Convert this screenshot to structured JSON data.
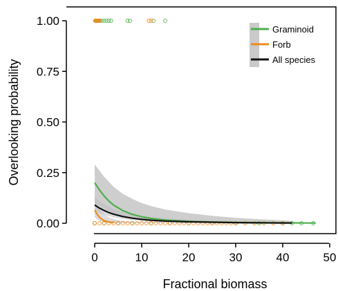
{
  "chart_data": {
    "type": "line",
    "title": "",
    "xlabel": "Fractional biomass",
    "ylabel": "Overlooking probability",
    "xlim": [
      -2,
      51
    ],
    "ylim": [
      -0.04,
      1.04
    ],
    "xticks": [
      0,
      10,
      20,
      30,
      40,
      50
    ],
    "xtick_labels": [
      "0",
      "10",
      "20",
      "30",
      "40",
      "50"
    ],
    "yticks": [
      0,
      0.25,
      0.5,
      0.75,
      1.0
    ],
    "ytick_labels": [
      "0.00",
      "0.25",
      "0.50",
      "0.75",
      "1.00"
    ],
    "legend_position": "top-right",
    "grid": false,
    "series": [
      {
        "name": "Graminoid",
        "color": "#4cae4c",
        "curve": {
          "x": [
            0,
            1,
            2,
            3,
            4,
            6,
            8,
            10,
            12,
            15,
            20,
            25,
            30,
            35,
            40,
            47
          ],
          "y": [
            0.2,
            0.165,
            0.135,
            0.11,
            0.09,
            0.062,
            0.044,
            0.032,
            0.024,
            0.016,
            0.009,
            0.006,
            0.004,
            0.003,
            0.002,
            0.001
          ]
        },
        "band": {
          "x": [
            0,
            1,
            2,
            3,
            4,
            6,
            8,
            10,
            12,
            15,
            20,
            25,
            30,
            35,
            40,
            42
          ],
          "lower": [
            0.1,
            0.085,
            0.072,
            0.06,
            0.05,
            0.035,
            0.025,
            0.017,
            0.012,
            0.007,
            0.003,
            0.001,
            0.0,
            0.0,
            0.0,
            0.0
          ],
          "upper": [
            0.29,
            0.26,
            0.23,
            0.205,
            0.18,
            0.145,
            0.12,
            0.1,
            0.085,
            0.068,
            0.05,
            0.037,
            0.027,
            0.02,
            0.014,
            0.012
          ]
        },
        "points_at_1": [
          0.2,
          0.4,
          0.6,
          0.8,
          1.0,
          1.5,
          2.0,
          2.5,
          3.0,
          3.5,
          7.0,
          7.5,
          12.5,
          15.0
        ],
        "points_at_0": [
          0,
          2,
          5,
          8,
          12,
          16,
          20,
          25,
          30,
          35,
          40,
          42,
          44,
          46.5
        ]
      },
      {
        "name": "Forb",
        "color": "#f08a1c",
        "curve": {
          "x": [
            0,
            0.5,
            1,
            1.5,
            2,
            3,
            4
          ],
          "y": [
            0.065,
            0.045,
            0.03,
            0.02,
            0.013,
            0.006,
            0.003
          ]
        },
        "band": {
          "x": [
            0,
            1,
            2,
            3,
            4,
            6,
            8,
            10,
            15,
            20
          ],
          "lower": [
            0.03,
            0.012,
            0.004,
            0.001,
            0.0,
            0.0,
            0.0,
            0.0,
            0.0,
            0.0
          ],
          "upper": [
            0.12,
            0.07,
            0.045,
            0.03,
            0.02,
            0.012,
            0.008,
            0.006,
            0.004,
            0.003
          ]
        },
        "points_at_1": [
          0.1,
          0.2,
          0.3,
          0.5,
          0.7,
          0.9,
          1.1,
          11.5,
          12.0
        ],
        "points_at_0": [
          0,
          1,
          2,
          3,
          4,
          5,
          6,
          7,
          8,
          9,
          10,
          11,
          12,
          13,
          14,
          15,
          16,
          17,
          18,
          19,
          20,
          21,
          22,
          23,
          24,
          25,
          26,
          27,
          28,
          29,
          30,
          32,
          34,
          36,
          38,
          40
        ]
      },
      {
        "name": "All species",
        "color": "#111111",
        "curve": {
          "x": [
            0,
            1,
            2,
            3,
            4,
            6,
            8,
            10,
            12,
            15,
            20,
            25,
            30,
            35,
            40,
            42
          ],
          "y": [
            0.09,
            0.075,
            0.063,
            0.053,
            0.045,
            0.033,
            0.025,
            0.019,
            0.015,
            0.011,
            0.007,
            0.005,
            0.003,
            0.002,
            0.0015,
            0.001
          ]
        },
        "band": {
          "x": [
            0,
            1,
            2,
            3,
            4,
            6,
            8,
            10,
            15,
            20,
            25,
            30,
            35,
            40,
            42
          ],
          "lower": [
            0.06,
            0.05,
            0.042,
            0.036,
            0.03,
            0.022,
            0.016,
            0.012,
            0.006,
            0.003,
            0.001,
            0.0,
            0.0,
            0.0,
            0.0
          ],
          "upper": [
            0.13,
            0.11,
            0.095,
            0.082,
            0.071,
            0.054,
            0.043,
            0.035,
            0.024,
            0.018,
            0.014,
            0.011,
            0.009,
            0.007,
            0.007
          ]
        }
      }
    ]
  }
}
